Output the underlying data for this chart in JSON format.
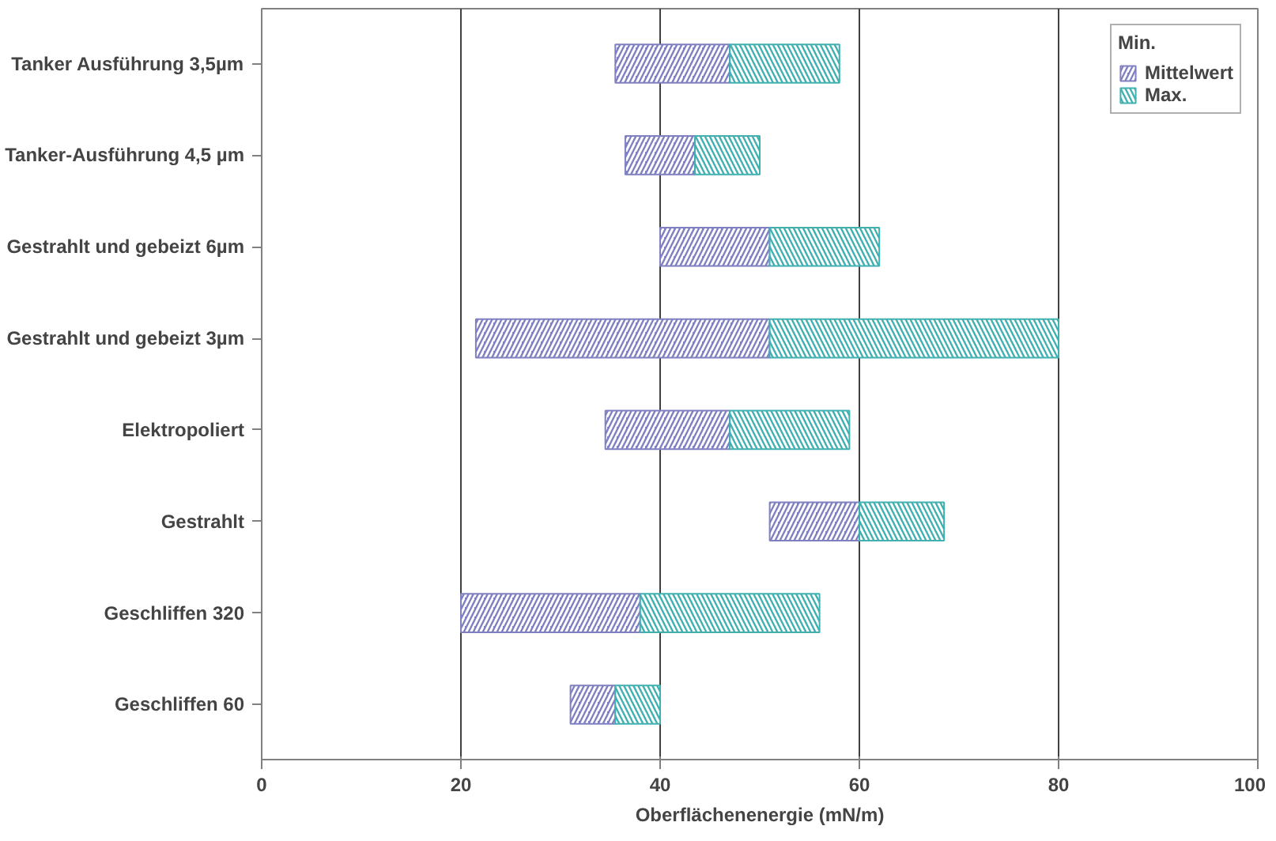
{
  "chart_data": {
    "type": "bar",
    "orientation": "horizontal",
    "xlabel": "Oberflächenenergie (mN/m)",
    "legend_title": "Min.",
    "categories": [
      "Tanker Ausführung 3,5µm",
      "Tanker-Ausführung 4,5 µm",
      "Gestrahlt und gebeizt 6µm",
      "Gestrahlt und gebeizt 3µm",
      "Elektropoliert",
      "Gestrahlt",
      "Geschliffen 320",
      "Geschliffen 60"
    ],
    "series": [
      {
        "name": "Mittelwert",
        "color": "#8080c0",
        "base": [
          35.5,
          36.5,
          40,
          21.5,
          34.5,
          51,
          20,
          31
        ],
        "values": [
          11.5,
          7,
          11,
          29.5,
          12.5,
          9,
          18,
          4.5
        ]
      },
      {
        "name": "Max.",
        "color": "#40b0b0",
        "base": [
          47,
          43.5,
          51,
          51,
          47,
          60,
          38,
          35.5
        ],
        "values": [
          11,
          6.5,
          11,
          29,
          12,
          8.5,
          18,
          4.5
        ]
      }
    ],
    "xlim": [
      0,
      100
    ],
    "xticks": [
      0,
      20,
      40,
      60,
      80,
      100
    ],
    "grid": "x",
    "legend": "top right"
  }
}
